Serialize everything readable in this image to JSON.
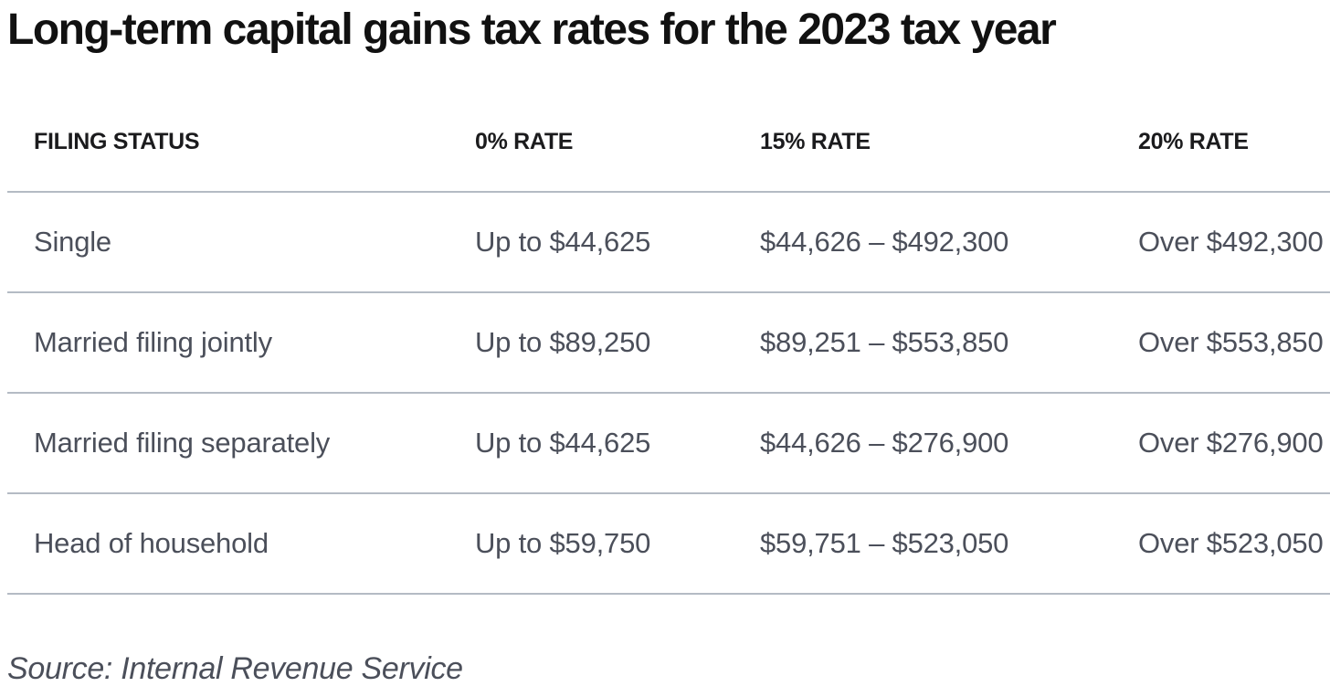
{
  "title": "Long-term capital gains tax rates for the 2023 tax year",
  "source_note": "Source: Internal Revenue Service",
  "colors": {
    "title_text": "#111111",
    "header_text": "#1b1b1d",
    "body_text": "#4b4f5a",
    "divider": "#b4bbc4",
    "background": "#ffffff"
  },
  "chart_data": {
    "type": "table",
    "title": "Long-term capital gains tax rates for the 2023 tax year",
    "columns": [
      "FILING STATUS",
      "0% RATE",
      "15% RATE",
      "20% RATE"
    ],
    "rows": [
      [
        "Single",
        "Up to $44,625",
        "$44,626 – $492,300",
        "Over $492,300"
      ],
      [
        "Married filing jointly",
        "Up to $89,250",
        "$89,251 – $553,850",
        "Over $553,850"
      ],
      [
        "Married filing separately",
        "Up to $44,625",
        "$44,626 – $276,900",
        "Over $276,900"
      ],
      [
        "Head of household",
        "Up to $59,750",
        "$59,751 – $523,050",
        "Over $523,050"
      ]
    ],
    "source": "Source: Internal Revenue Service",
    "layout": {
      "grid": "horizontal dividers only",
      "column_alignment": "left",
      "divider_color": "#b4bbc4"
    }
  }
}
